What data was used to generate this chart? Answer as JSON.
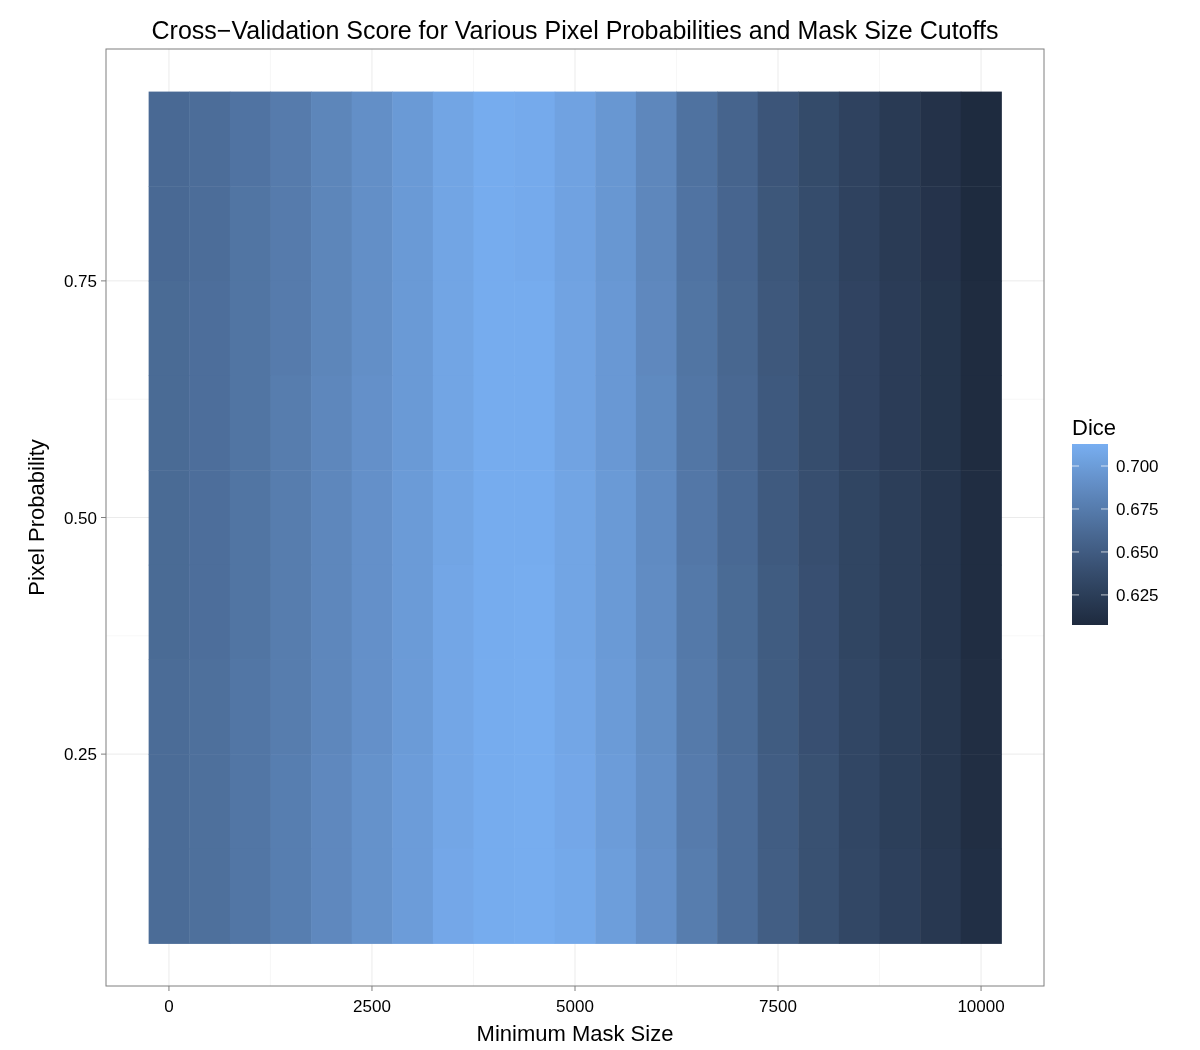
{
  "chart_data": {
    "type": "heatmap",
    "title": "Cross−Validation Score for Various Pixel Probabilities and Mask Size Cutoffs",
    "xlabel": "Minimum Mask Size",
    "ylabel": "Pixel Probability",
    "clabel": "Dice",
    "x": [
      0,
      500,
      1000,
      1500,
      2000,
      2500,
      3000,
      3500,
      4000,
      4500,
      5000,
      5500,
      6000,
      6500,
      7000,
      7500,
      8000,
      8500,
      9000,
      9500,
      10000
    ],
    "y": [
      0.9,
      0.8,
      0.7,
      0.6,
      0.5,
      0.4,
      0.3,
      0.2,
      0.1
    ],
    "cells": [
      [
        0.661,
        0.664,
        0.669,
        0.675,
        0.683,
        0.69,
        0.698,
        0.706,
        0.711,
        0.71,
        0.704,
        0.696,
        0.684,
        0.668,
        0.657,
        0.645,
        0.636,
        0.629,
        0.622,
        0.615,
        0.608
      ],
      [
        0.661,
        0.664,
        0.67,
        0.675,
        0.683,
        0.69,
        0.698,
        0.706,
        0.711,
        0.71,
        0.704,
        0.696,
        0.684,
        0.669,
        0.658,
        0.646,
        0.637,
        0.629,
        0.623,
        0.616,
        0.608
      ],
      [
        0.662,
        0.665,
        0.67,
        0.675,
        0.683,
        0.69,
        0.698,
        0.706,
        0.711,
        0.711,
        0.705,
        0.697,
        0.685,
        0.67,
        0.659,
        0.647,
        0.638,
        0.63,
        0.624,
        0.617,
        0.609
      ],
      [
        0.662,
        0.665,
        0.67,
        0.676,
        0.684,
        0.691,
        0.698,
        0.706,
        0.711,
        0.711,
        0.705,
        0.697,
        0.686,
        0.671,
        0.66,
        0.648,
        0.638,
        0.63,
        0.624,
        0.617,
        0.609
      ],
      [
        0.662,
        0.665,
        0.67,
        0.676,
        0.684,
        0.691,
        0.699,
        0.706,
        0.711,
        0.711,
        0.706,
        0.698,
        0.687,
        0.672,
        0.661,
        0.649,
        0.639,
        0.631,
        0.625,
        0.618,
        0.61
      ],
      [
        0.662,
        0.665,
        0.67,
        0.676,
        0.684,
        0.691,
        0.699,
        0.707,
        0.711,
        0.712,
        0.706,
        0.698,
        0.688,
        0.673,
        0.662,
        0.65,
        0.64,
        0.631,
        0.625,
        0.618,
        0.61
      ],
      [
        0.663,
        0.666,
        0.671,
        0.676,
        0.684,
        0.691,
        0.699,
        0.707,
        0.711,
        0.712,
        0.707,
        0.699,
        0.689,
        0.674,
        0.663,
        0.65,
        0.64,
        0.632,
        0.626,
        0.619,
        0.611
      ],
      [
        0.663,
        0.666,
        0.671,
        0.677,
        0.685,
        0.692,
        0.7,
        0.707,
        0.711,
        0.712,
        0.708,
        0.7,
        0.69,
        0.675,
        0.664,
        0.651,
        0.641,
        0.632,
        0.626,
        0.619,
        0.611
      ],
      [
        0.663,
        0.666,
        0.671,
        0.677,
        0.685,
        0.692,
        0.7,
        0.708,
        0.711,
        0.712,
        0.709,
        0.701,
        0.691,
        0.676,
        0.664,
        0.652,
        0.641,
        0.633,
        0.627,
        0.62,
        0.612
      ]
    ],
    "colors": [
      "#1e2a3e",
      "#78aef1"
    ],
    "clim": [
      0.6075,
      0.7128
    ],
    "cticks": [
      {
        "value": 0.625,
        "label": "0.625"
      },
      {
        "value": 0.65,
        "label": "0.650"
      },
      {
        "value": 0.675,
        "label": "0.675"
      },
      {
        "value": 0.7,
        "label": "0.700"
      }
    ],
    "xlim": [
      -775,
      10775
    ],
    "ylim": [
      0.005,
      0.995
    ],
    "xticks": [
      0,
      2500,
      5000,
      7500,
      10000
    ],
    "yticks": [
      {
        "value": 0.25,
        "label": "0.25"
      },
      {
        "value": 0.5,
        "label": "0.50"
      },
      {
        "value": 0.75,
        "label": "0.75"
      }
    ],
    "grid": true
  }
}
